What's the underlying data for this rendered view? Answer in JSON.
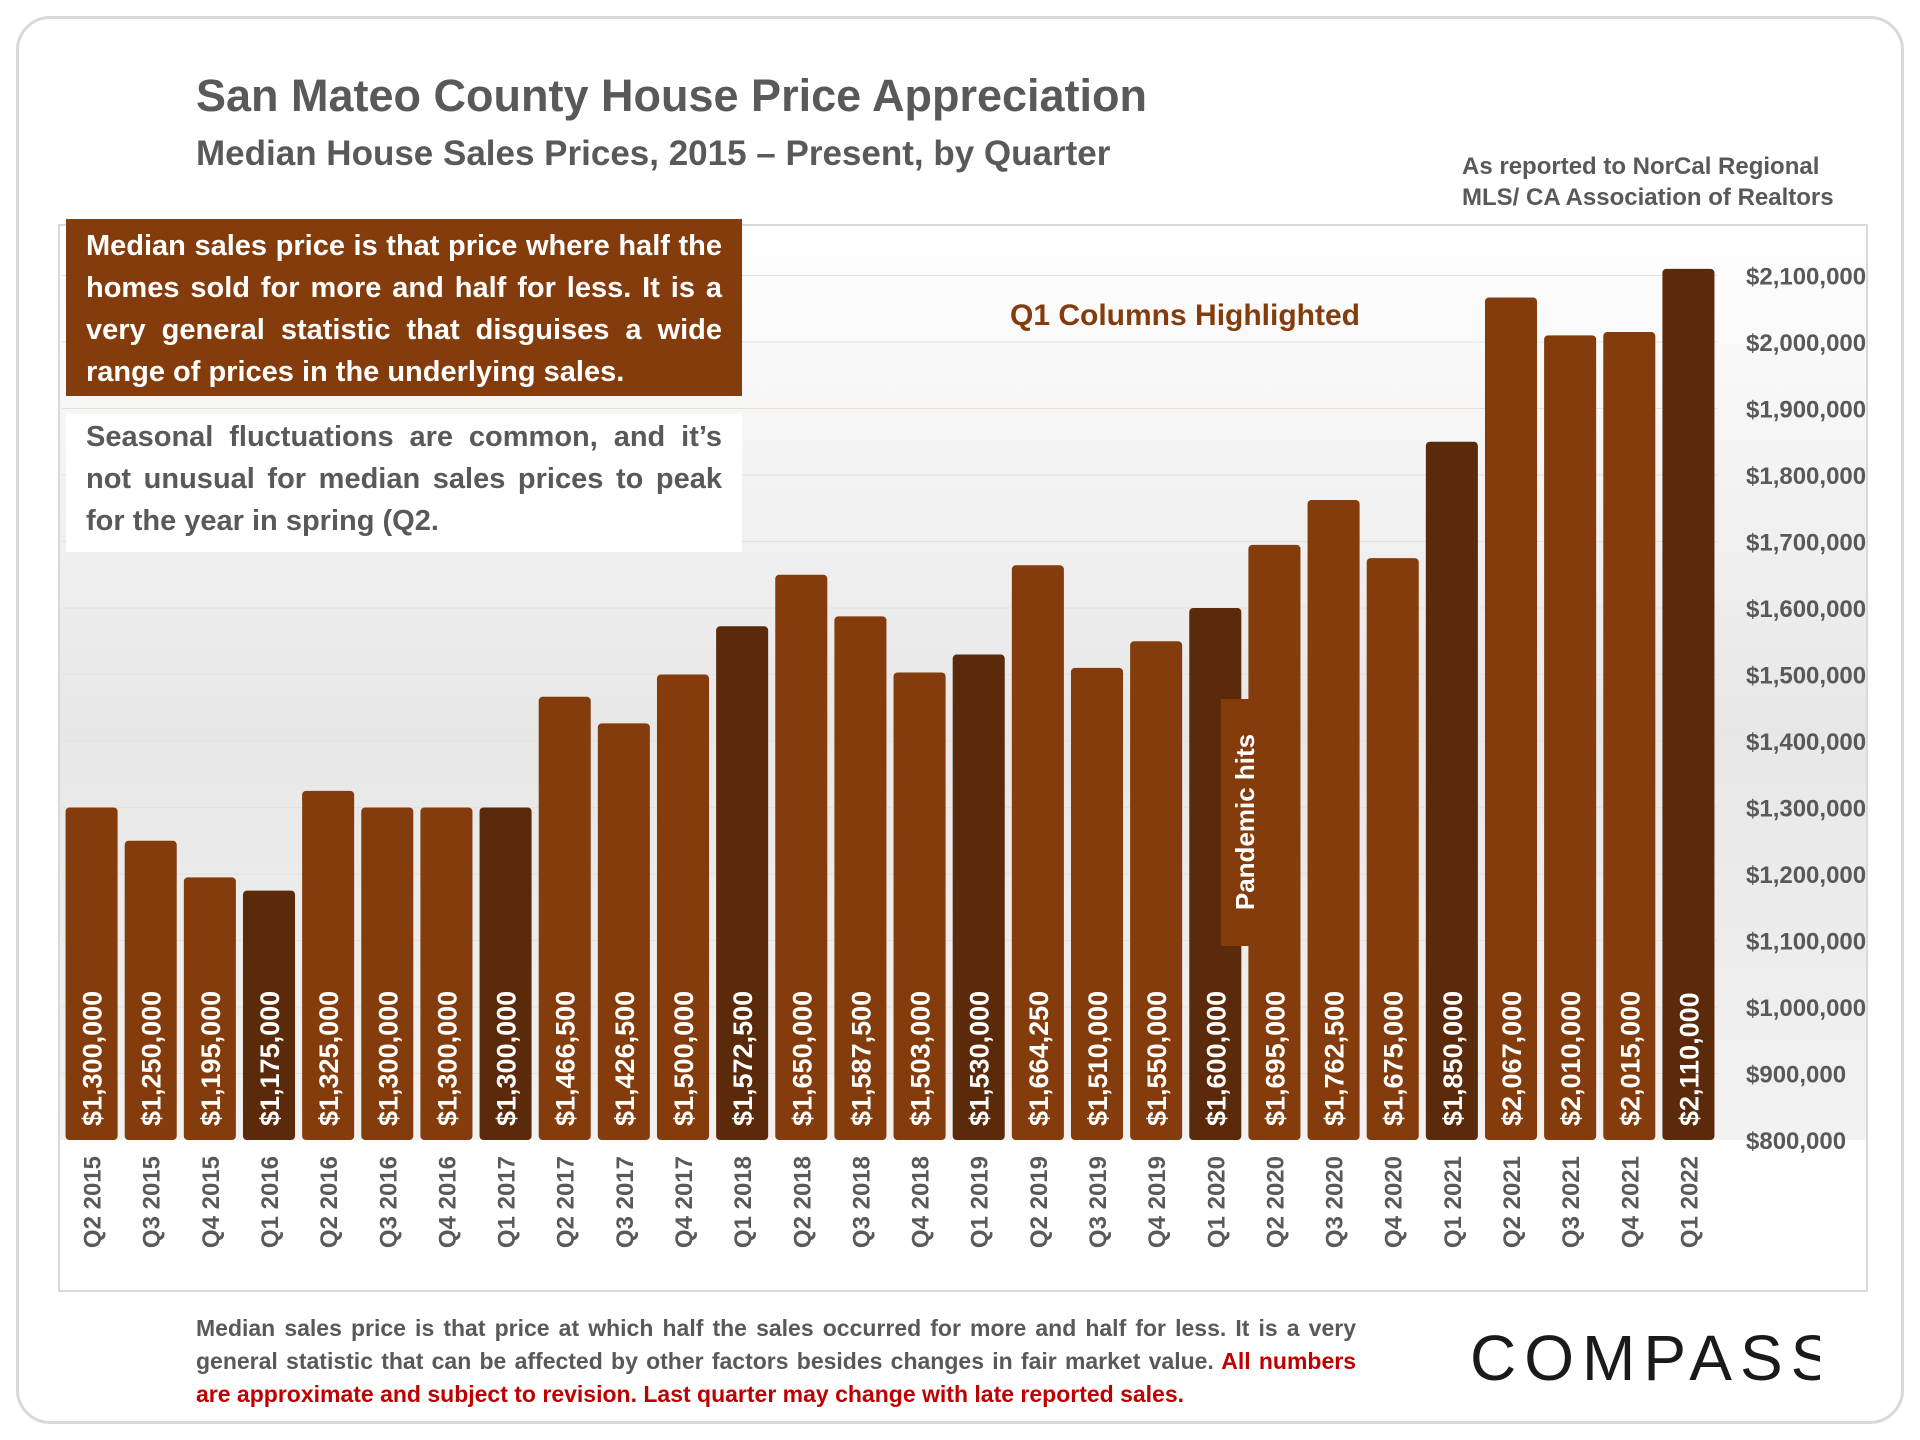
{
  "title": "San Mateo County House Price Appreciation",
  "subtitle": "Median House Sales Prices, 2015 – Present, by Quarter",
  "source": "As reported to NorCal Regional MLS/ CA Association of Realtors",
  "info_box_dark": "Median sales price is that price where half the homes sold for more and half for less. It is a very general statistic that disguises a wide range of prices in the underlying sales.",
  "info_box_light": "Seasonal fluctuations are common, and it’s not unusual for median sales prices to peak for the year in spring (Q2.",
  "footer": {
    "part1": "Median sales price is that price at which half the sales occurred for more and half for less. It is a very general statistic that can be affected by other factors besides changes in fair market value.",
    "part2": "All numbers are approximate and subject to revision. Last quarter may change with late reported sales."
  },
  "logo": "COMPASS",
  "colors": {
    "bar": "#843c0c",
    "bar_highlight": "#5b2a0b",
    "highlight_label": "#843c0c",
    "text_gray": "#595959",
    "footer_red": "#c00000"
  },
  "chart_data": {
    "type": "bar",
    "title": "San Mateo County House Price Appreciation",
    "subtitle": "Median House Sales Prices, 2015 – Present, by Quarter",
    "xlabel": "",
    "ylabel": "",
    "ylim": [
      800000,
      2150000
    ],
    "ytick_step": 100000,
    "y_axis_side": "right",
    "ytick_labels": [
      "$800,000",
      "$900,000",
      "$1,000,000",
      "$1,100,000",
      "$1,200,000",
      "$1,300,000",
      "$1,400,000",
      "$1,500,000",
      "$1,600,000",
      "$1,700,000",
      "$1,800,000",
      "$1,900,000",
      "$2,000,000",
      "$2,100,000"
    ],
    "categories": [
      "Q2 2015",
      "Q3 2015",
      "Q4 2015",
      "Q1 2016",
      "Q2 2016",
      "Q3 2016",
      "Q4 2016",
      "Q1 2017",
      "Q2 2017",
      "Q3 2017",
      "Q4 2017",
      "Q1 2018",
      "Q2 2018",
      "Q3 2018",
      "Q4 2018",
      "Q1 2019",
      "Q2 2019",
      "Q3 2019",
      "Q4 2019",
      "Q1 2020",
      "Q2 2020",
      "Q3 2020",
      "Q4 2020",
      "Q1 2021",
      "Q2 2021",
      "Q3 2021",
      "Q4 2021",
      "Q1 2022"
    ],
    "values": [
      1300000,
      1250000,
      1195000,
      1175000,
      1325000,
      1300000,
      1300000,
      1300000,
      1466500,
      1426500,
      1500000,
      1572500,
      1650000,
      1587500,
      1503000,
      1530000,
      1664250,
      1510000,
      1550000,
      1600000,
      1695000,
      1762500,
      1675000,
      1850000,
      2067000,
      2010000,
      2015000,
      2110000
    ],
    "value_labels": [
      "$1,300,000",
      "$1,250,000",
      "$1,195,000",
      "$1,175,000",
      "$1,325,000",
      "$1,300,000",
      "$1,300,000",
      "$1,300,000",
      "$1,466,500",
      "$1,426,500",
      "$1,500,000",
      "$1,572,500",
      "$1,650,000",
      "$1,587,500",
      "$1,503,000",
      "$1,530,000",
      "$1,664,250",
      "$1,510,000",
      "$1,550,000",
      "$1,600,000",
      "$1,695,000",
      "$1,762,500",
      "$1,675,000",
      "$1,850,000",
      "$2,067,000",
      "$2,010,000",
      "$2,015,000",
      "$2,110,000"
    ],
    "highlight_note": "Q1 Columns Highlighted",
    "highlighted_categories": [
      "Q1 2016",
      "Q1 2017",
      "Q1 2018",
      "Q1 2019",
      "Q1 2020",
      "Q1 2021",
      "Q1 2022"
    ],
    "annotation": {
      "category": "Q1 2020",
      "text": "Pandemic hits"
    },
    "grid": true,
    "legend": "none"
  }
}
